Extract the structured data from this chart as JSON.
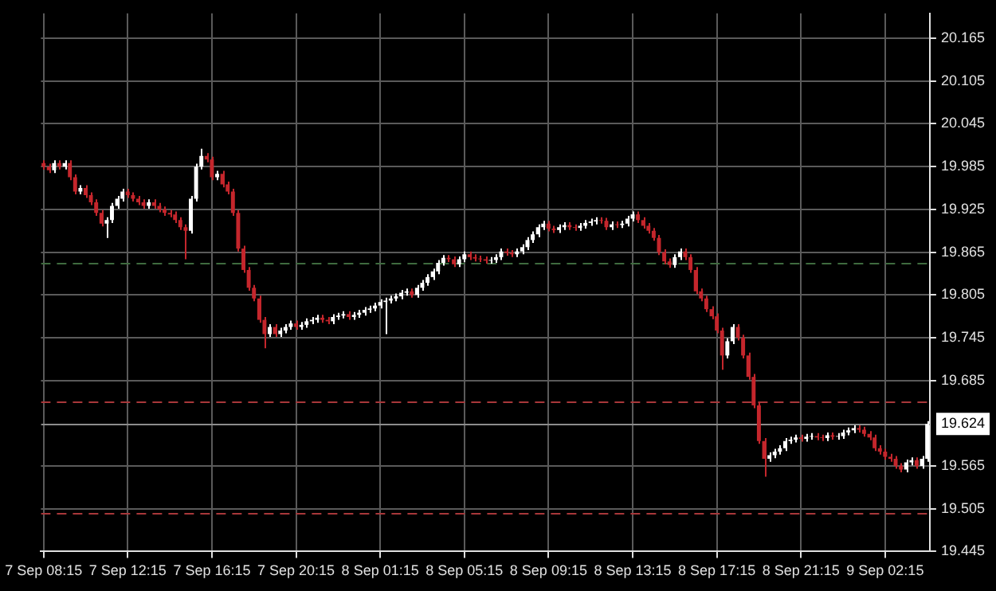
{
  "chart_data": {
    "type": "candlestick",
    "categories": [
      "7 Sep 08:15",
      null,
      null,
      null,
      null,
      null,
      null,
      null,
      null,
      null,
      null,
      null,
      null,
      null,
      null,
      null,
      "7 Sep 12:15",
      null,
      null,
      null,
      null,
      null,
      null,
      null,
      null,
      null,
      null,
      null,
      null,
      null,
      null,
      null,
      "7 Sep 16:15",
      null,
      null,
      null,
      null,
      null,
      null,
      null,
      null,
      null,
      null,
      null,
      null,
      null,
      null,
      null,
      "7 Sep 20:15",
      null,
      null,
      null,
      null,
      null,
      null,
      null,
      null,
      null,
      null,
      null,
      null,
      null,
      null,
      null,
      "8 Sep 01:15",
      null,
      null,
      null,
      null,
      null,
      null,
      null,
      null,
      null,
      null,
      null,
      null,
      null,
      null,
      null,
      "8 Sep 05:15",
      null,
      null,
      null,
      null,
      null,
      null,
      null,
      null,
      null,
      null,
      null,
      null,
      null,
      null,
      null,
      "8 Sep 09:15",
      null,
      null,
      null,
      null,
      null,
      null,
      null,
      null,
      null,
      null,
      null,
      null,
      null,
      null,
      null,
      "8 Sep 13:15",
      null,
      null,
      null,
      null,
      null,
      null,
      null,
      null,
      null,
      null,
      null,
      null,
      null,
      null,
      null,
      "8 Sep 17:15",
      null,
      null,
      null,
      null,
      null,
      null,
      null,
      null,
      null,
      null,
      null,
      null,
      null,
      null,
      null,
      "8 Sep 21:15",
      null,
      null,
      null,
      null,
      null,
      null,
      null,
      null,
      null,
      null,
      null,
      null,
      null,
      null,
      null,
      "9 Sep 02:15",
      null,
      null,
      null,
      null,
      null,
      null,
      null,
      null
    ],
    "ohlc": [
      [
        19.99,
        19.994,
        19.981,
        19.985
      ],
      [
        19.985,
        19.989,
        19.976,
        19.98
      ],
      [
        19.98,
        19.994,
        19.976,
        19.99
      ],
      [
        19.99,
        19.994,
        19.981,
        19.985
      ],
      [
        19.985,
        19.994,
        19.981,
        19.99
      ],
      [
        19.99,
        19.994,
        19.966,
        19.97
      ],
      [
        19.97,
        19.974,
        19.946,
        19.95
      ],
      [
        19.95,
        19.959,
        19.946,
        19.955
      ],
      [
        19.955,
        19.959,
        19.941,
        19.945
      ],
      [
        19.945,
        19.949,
        19.931,
        19.935
      ],
      [
        19.935,
        19.939,
        19.916,
        19.92
      ],
      [
        19.92,
        19.924,
        19.901,
        19.905
      ],
      [
        19.905,
        19.914,
        19.885,
        19.91
      ],
      [
        19.91,
        19.934,
        19.906,
        19.93
      ],
      [
        19.93,
        19.944,
        19.926,
        19.94
      ],
      [
        19.94,
        19.954,
        19.936,
        19.95
      ],
      [
        19.95,
        19.954,
        19.941,
        19.945
      ],
      [
        19.945,
        19.949,
        19.936,
        19.94
      ],
      [
        19.94,
        19.944,
        19.931,
        19.935
      ],
      [
        19.935,
        19.939,
        19.926,
        19.93
      ],
      [
        19.93,
        19.939,
        19.926,
        19.935
      ],
      [
        19.935,
        19.939,
        19.926,
        19.93
      ],
      [
        19.93,
        19.934,
        19.921,
        19.925
      ],
      [
        19.925,
        19.929,
        19.916,
        19.92
      ],
      [
        19.92,
        19.924,
        19.914,
        19.918
      ],
      [
        19.918,
        19.922,
        19.906,
        19.91
      ],
      [
        19.91,
        19.914,
        19.896,
        19.9
      ],
      [
        19.9,
        19.904,
        19.855,
        19.895
      ],
      [
        19.895,
        19.944,
        19.891,
        19.94
      ],
      [
        19.94,
        19.989,
        19.936,
        19.985
      ],
      [
        19.985,
        20.01,
        19.981,
        20.0
      ],
      [
        20.0,
        20.004,
        19.991,
        19.995
      ],
      [
        19.995,
        19.999,
        19.966,
        19.97
      ],
      [
        19.97,
        19.979,
        19.966,
        19.975
      ],
      [
        19.975,
        19.979,
        19.956,
        19.96
      ],
      [
        19.96,
        19.964,
        19.946,
        19.95
      ],
      [
        19.95,
        19.954,
        19.916,
        19.92
      ],
      [
        19.92,
        19.924,
        19.866,
        19.87
      ],
      [
        19.87,
        19.874,
        19.836,
        19.84
      ],
      [
        19.84,
        19.844,
        19.811,
        19.815
      ],
      [
        19.815,
        19.819,
        19.796,
        19.8
      ],
      [
        19.8,
        19.804,
        19.766,
        19.77
      ],
      [
        19.77,
        19.774,
        19.73,
        19.75
      ],
      [
        19.75,
        19.764,
        19.746,
        19.76
      ],
      [
        19.76,
        19.764,
        19.746,
        19.75
      ],
      [
        19.75,
        19.759,
        19.746,
        19.755
      ],
      [
        19.755,
        19.764,
        19.751,
        19.76
      ],
      [
        19.76,
        19.769,
        19.756,
        19.765
      ],
      [
        19.765,
        19.769,
        19.756,
        19.76
      ],
      [
        19.76,
        19.767,
        19.756,
        19.763
      ],
      [
        19.763,
        19.772,
        19.759,
        19.768
      ],
      [
        19.768,
        19.774,
        19.764,
        19.77
      ],
      [
        19.77,
        19.777,
        19.766,
        19.773
      ],
      [
        19.773,
        19.777,
        19.766,
        19.77
      ],
      [
        19.77,
        19.774,
        19.764,
        19.768
      ],
      [
        19.768,
        19.778,
        19.764,
        19.774
      ],
      [
        19.774,
        19.78,
        19.77,
        19.776
      ],
      [
        19.776,
        19.782,
        19.772,
        19.778
      ],
      [
        19.778,
        19.782,
        19.77,
        19.774
      ],
      [
        19.774,
        19.781,
        19.77,
        19.777
      ],
      [
        19.777,
        19.784,
        19.773,
        19.78
      ],
      [
        19.78,
        19.788,
        19.776,
        19.784
      ],
      [
        19.784,
        19.79,
        19.78,
        19.786
      ],
      [
        19.786,
        19.794,
        19.782,
        19.79
      ],
      [
        19.79,
        19.799,
        19.786,
        19.795
      ],
      [
        19.795,
        19.801,
        19.75,
        19.797
      ],
      [
        19.797,
        19.804,
        19.793,
        19.8
      ],
      [
        19.8,
        19.807,
        19.796,
        19.803
      ],
      [
        19.803,
        19.812,
        19.799,
        19.808
      ],
      [
        19.808,
        19.814,
        19.804,
        19.81
      ],
      [
        19.81,
        19.814,
        19.801,
        19.805
      ],
      [
        19.805,
        19.819,
        19.801,
        19.815
      ],
      [
        19.815,
        19.826,
        19.811,
        19.822
      ],
      [
        19.822,
        19.834,
        19.818,
        19.83
      ],
      [
        19.83,
        19.842,
        19.826,
        19.838
      ],
      [
        19.838,
        19.854,
        19.834,
        19.85
      ],
      [
        19.85,
        19.861,
        19.846,
        19.857
      ],
      [
        19.857,
        19.861,
        19.851,
        19.855
      ],
      [
        19.855,
        19.859,
        19.844,
        19.848
      ],
      [
        19.848,
        19.859,
        19.844,
        19.855
      ],
      [
        19.855,
        19.866,
        19.851,
        19.862
      ],
      [
        19.862,
        19.866,
        19.854,
        19.858
      ],
      [
        19.858,
        19.862,
        19.852,
        19.856
      ],
      [
        19.856,
        19.86,
        19.851,
        19.855
      ],
      [
        19.855,
        19.859,
        19.849,
        19.853
      ],
      [
        19.853,
        19.858,
        19.849,
        19.854
      ],
      [
        19.854,
        19.862,
        19.85,
        19.858
      ],
      [
        19.858,
        19.87,
        19.854,
        19.866
      ],
      [
        19.866,
        19.87,
        19.86,
        19.864
      ],
      [
        19.864,
        19.868,
        19.858,
        19.862
      ],
      [
        19.862,
        19.87,
        19.858,
        19.866
      ],
      [
        19.866,
        19.876,
        19.862,
        19.872
      ],
      [
        19.872,
        19.886,
        19.868,
        19.882
      ],
      [
        19.882,
        19.894,
        19.878,
        19.89
      ],
      [
        19.89,
        19.904,
        19.886,
        19.9
      ],
      [
        19.9,
        19.909,
        19.896,
        19.905
      ],
      [
        19.905,
        19.909,
        19.894,
        19.898
      ],
      [
        19.898,
        19.902,
        19.892,
        19.896
      ],
      [
        19.896,
        19.904,
        19.892,
        19.9
      ],
      [
        19.9,
        19.907,
        19.896,
        19.903
      ],
      [
        19.903,
        19.907,
        19.896,
        19.9
      ],
      [
        19.9,
        19.904,
        19.895,
        19.899
      ],
      [
        19.899,
        19.906,
        19.895,
        19.902
      ],
      [
        19.902,
        19.91,
        19.898,
        19.906
      ],
      [
        19.906,
        19.912,
        19.902,
        19.908
      ],
      [
        19.908,
        19.914,
        19.904,
        19.91
      ],
      [
        19.91,
        19.914,
        19.905,
        19.909
      ],
      [
        19.909,
        19.913,
        19.896,
        19.9
      ],
      [
        19.9,
        19.908,
        19.896,
        19.904
      ],
      [
        19.904,
        19.908,
        19.899,
        19.903
      ],
      [
        19.903,
        19.909,
        19.899,
        19.905
      ],
      [
        19.905,
        19.916,
        19.901,
        19.912
      ],
      [
        19.912,
        19.922,
        19.908,
        19.918
      ],
      [
        19.918,
        19.922,
        19.906,
        19.91
      ],
      [
        19.91,
        19.914,
        19.898,
        19.902
      ],
      [
        19.902,
        19.906,
        19.891,
        19.895
      ],
      [
        19.895,
        19.899,
        19.881,
        19.885
      ],
      [
        19.885,
        19.889,
        19.861,
        19.865
      ],
      [
        19.865,
        19.869,
        19.848,
        19.852
      ],
      [
        19.852,
        19.856,
        19.843,
        19.847
      ],
      [
        19.847,
        19.862,
        19.843,
        19.858
      ],
      [
        19.858,
        19.87,
        19.854,
        19.866
      ],
      [
        19.866,
        19.87,
        19.854,
        19.858
      ],
      [
        19.858,
        19.862,
        19.836,
        19.84
      ],
      [
        19.84,
        19.844,
        19.806,
        19.81
      ],
      [
        19.81,
        19.814,
        19.796,
        19.8
      ],
      [
        19.8,
        19.804,
        19.781,
        19.785
      ],
      [
        19.785,
        19.789,
        19.771,
        19.775
      ],
      [
        19.775,
        19.779,
        19.751,
        19.755
      ],
      [
        19.755,
        19.759,
        19.7,
        19.72
      ],
      [
        19.72,
        19.744,
        19.716,
        19.74
      ],
      [
        19.74,
        19.764,
        19.736,
        19.76
      ],
      [
        19.76,
        19.764,
        19.741,
        19.745
      ],
      [
        19.745,
        19.749,
        19.716,
        19.72
      ],
      [
        19.72,
        19.724,
        19.686,
        19.69
      ],
      [
        19.69,
        19.694,
        19.646,
        19.65
      ],
      [
        19.65,
        19.654,
        19.596,
        19.6
      ],
      [
        19.6,
        19.604,
        19.55,
        19.575
      ],
      [
        19.575,
        19.584,
        19.571,
        19.58
      ],
      [
        19.58,
        19.589,
        19.576,
        19.585
      ],
      [
        19.585,
        19.594,
        19.581,
        19.59
      ],
      [
        19.59,
        19.604,
        19.586,
        19.6
      ],
      [
        19.6,
        19.606,
        19.596,
        19.602
      ],
      [
        19.602,
        19.609,
        19.598,
        19.605
      ],
      [
        19.605,
        19.609,
        19.599,
        19.603
      ],
      [
        19.603,
        19.61,
        19.599,
        19.606
      ],
      [
        19.606,
        19.611,
        19.602,
        19.607
      ],
      [
        19.607,
        19.611,
        19.601,
        19.605
      ],
      [
        19.605,
        19.609,
        19.6,
        19.604
      ],
      [
        19.604,
        19.612,
        19.6,
        19.608
      ],
      [
        19.608,
        19.612,
        19.602,
        19.606
      ],
      [
        19.606,
        19.611,
        19.602,
        19.607
      ],
      [
        19.607,
        19.616,
        19.603,
        19.612
      ],
      [
        19.612,
        19.619,
        19.608,
        19.615
      ],
      [
        19.615,
        19.622,
        19.611,
        19.618
      ],
      [
        19.618,
        19.622,
        19.612,
        19.616
      ],
      [
        19.616,
        19.62,
        19.606,
        19.61
      ],
      [
        19.61,
        19.614,
        19.601,
        19.605
      ],
      [
        19.605,
        19.609,
        19.586,
        19.59
      ],
      [
        19.59,
        19.594,
        19.581,
        19.585
      ],
      [
        19.585,
        19.589,
        19.574,
        19.578
      ],
      [
        19.578,
        19.582,
        19.571,
        19.575
      ],
      [
        19.575,
        19.579,
        19.561,
        19.565
      ],
      [
        19.565,
        19.569,
        19.556,
        19.56
      ],
      [
        19.56,
        19.574,
        19.556,
        19.57
      ],
      [
        19.57,
        19.577,
        19.566,
        19.573
      ],
      [
        19.573,
        19.577,
        19.561,
        19.565
      ],
      [
        19.565,
        19.579,
        19.561,
        19.575
      ],
      [
        19.575,
        19.628,
        19.571,
        19.624
      ]
    ],
    "colors": [
      "#c4262c",
      "#c4262c",
      "#ffffff",
      "#c4262c",
      "#ffffff",
      "#c4262c",
      "#c4262c",
      "#ffffff",
      "#c4262c",
      "#c4262c",
      "#c4262c",
      "#c4262c",
      "#ffffff",
      "#ffffff",
      "#ffffff",
      "#ffffff",
      "#c4262c",
      "#c4262c",
      "#c4262c",
      "#c4262c",
      "#ffffff",
      "#c4262c",
      "#c4262c",
      "#c4262c",
      "#c4262c",
      "#c4262c",
      "#c4262c",
      "#c4262c",
      "#ffffff",
      "#ffffff",
      "#ffffff",
      "#c4262c",
      "#c4262c",
      "#ffffff",
      "#c4262c",
      "#c4262c",
      "#c4262c",
      "#c4262c",
      "#c4262c",
      "#c4262c",
      "#c4262c",
      "#c4262c",
      "#c4262c",
      "#ffffff",
      "#c4262c",
      "#ffffff",
      "#ffffff",
      "#ffffff",
      "#c4262c",
      "#ffffff",
      "#ffffff",
      "#ffffff",
      "#ffffff",
      "#c4262c",
      "#c4262c",
      "#ffffff",
      "#ffffff",
      "#ffffff",
      "#c4262c",
      "#ffffff",
      "#ffffff",
      "#ffffff",
      "#ffffff",
      "#ffffff",
      "#ffffff",
      "#ffffff",
      "#ffffff",
      "#ffffff",
      "#ffffff",
      "#ffffff",
      "#c4262c",
      "#ffffff",
      "#ffffff",
      "#ffffff",
      "#ffffff",
      "#ffffff",
      "#ffffff",
      "#c4262c",
      "#c4262c",
      "#ffffff",
      "#ffffff",
      "#c4262c",
      "#c4262c",
      "#c4262c",
      "#c4262c",
      "#ffffff",
      "#ffffff",
      "#ffffff",
      "#c4262c",
      "#c4262c",
      "#ffffff",
      "#ffffff",
      "#ffffff",
      "#ffffff",
      "#ffffff",
      "#ffffff",
      "#c4262c",
      "#c4262c",
      "#ffffff",
      "#ffffff",
      "#c4262c",
      "#c4262c",
      "#ffffff",
      "#ffffff",
      "#ffffff",
      "#ffffff",
      "#c4262c",
      "#c4262c",
      "#ffffff",
      "#c4262c",
      "#ffffff",
      "#ffffff",
      "#ffffff",
      "#c4262c",
      "#c4262c",
      "#c4262c",
      "#c4262c",
      "#c4262c",
      "#c4262c",
      "#c4262c",
      "#ffffff",
      "#ffffff",
      "#c4262c",
      "#c4262c",
      "#c4262c",
      "#c4262c",
      "#c4262c",
      "#c4262c",
      "#c4262c",
      "#c4262c",
      "#ffffff",
      "#ffffff",
      "#c4262c",
      "#c4262c",
      "#c4262c",
      "#c4262c",
      "#c4262c",
      "#c4262c",
      "#ffffff",
      "#ffffff",
      "#ffffff",
      "#ffffff",
      "#ffffff",
      "#ffffff",
      "#c4262c",
      "#ffffff",
      "#ffffff",
      "#c4262c",
      "#c4262c",
      "#ffffff",
      "#c4262c",
      "#ffffff",
      "#ffffff",
      "#ffffff",
      "#ffffff",
      "#c4262c",
      "#c4262c",
      "#c4262c",
      "#c4262c",
      "#c4262c",
      "#c4262c",
      "#c4262c",
      "#c4262c",
      "#c4262c",
      "#ffffff",
      "#ffffff",
      "#c4262c",
      "#ffffff",
      "#ffffff"
    ],
    "ylim": [
      19.445,
      20.2
    ],
    "yticks": [
      19.445,
      19.505,
      19.565,
      19.685,
      19.745,
      19.805,
      19.865,
      19.925,
      19.985,
      20.045,
      20.105,
      20.165
    ],
    "ref_lines": [
      {
        "axis": "y",
        "value": 19.85,
        "color": "#3f6b3f",
        "line_style": "dashed"
      },
      {
        "axis": "y",
        "value": 19.656,
        "color": "#a8373a",
        "line_style": "dashed"
      },
      {
        "axis": "y",
        "value": 19.498,
        "color": "#a8373a",
        "line_style": "dashed"
      },
      {
        "axis": "y",
        "value": 19.624,
        "label": "19.624",
        "color": "#8c8c8c",
        "line_style": "solid"
      }
    ],
    "grid": true,
    "legend": false
  }
}
